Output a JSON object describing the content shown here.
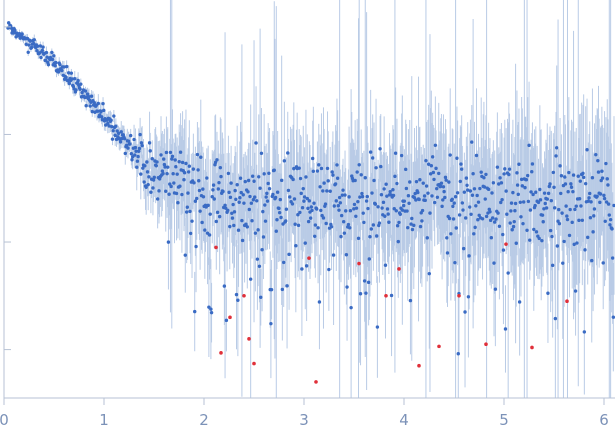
{
  "chart_data": {
    "type": "scatter",
    "title": "",
    "xlabel": "",
    "ylabel": "",
    "xlim": [
      0,
      6.1
    ],
    "ylim": [
      -1.45,
      2.25
    ],
    "y_scale": "log10",
    "grid": false,
    "legend": "none",
    "x_ticks": [
      0,
      1,
      2,
      3,
      4,
      5,
      6
    ],
    "x_tick_labels": [
      "0",
      "1",
      "2",
      "3",
      "4",
      "5",
      "6"
    ],
    "y_ticks": [
      2,
      1,
      0,
      -1
    ],
    "y_tick_labels": [
      "",
      "",
      "",
      ""
    ],
    "colors": {
      "points": "#3a6bc4",
      "errorbars": "#b9cbe6",
      "outliers": "#e0303a",
      "axis": "#b7c2d4",
      "tick_text": "#7c92b8"
    },
    "series": [
      {
        "role": "measured",
        "x": [
          0.05,
          0.15,
          0.3,
          0.5,
          0.7,
          0.9,
          1.1,
          1.3,
          1.5,
          1.7,
          1.9,
          2.1,
          2.3,
          2.5,
          2.7,
          2.9,
          3.1,
          3.3,
          3.5,
          3.7,
          3.9,
          4.1,
          4.3,
          4.5,
          4.7,
          4.9,
          5.1,
          5.3,
          5.5,
          5.7,
          5.9,
          6.05
        ],
        "y": [
          2.0,
          1.92,
          1.82,
          1.66,
          1.48,
          1.28,
          1.04,
          0.84,
          0.62,
          0.62,
          0.5,
          0.4,
          0.38,
          0.45,
          0.4,
          0.4,
          0.42,
          0.4,
          0.4,
          0.42,
          0.4,
          0.38,
          0.42,
          0.4,
          0.4,
          0.4,
          0.42,
          0.4,
          0.38,
          0.42,
          0.38,
          0.3
        ]
      },
      {
        "role": "outliers",
        "x": [
          2.12,
          2.17,
          2.26,
          2.4,
          2.45,
          2.5,
          3.05,
          3.12,
          3.55,
          3.82,
          3.95,
          4.15,
          4.35,
          4.55,
          4.82,
          5.02,
          5.28,
          5.63
        ],
        "y": [
          -0.05,
          -1.03,
          -0.7,
          -0.5,
          -0.9,
          -1.13,
          -0.15,
          -1.3,
          -0.2,
          -0.5,
          -0.25,
          -1.15,
          -0.97,
          -0.5,
          -0.95,
          -0.02,
          -0.98,
          -0.55
        ]
      }
    ]
  }
}
